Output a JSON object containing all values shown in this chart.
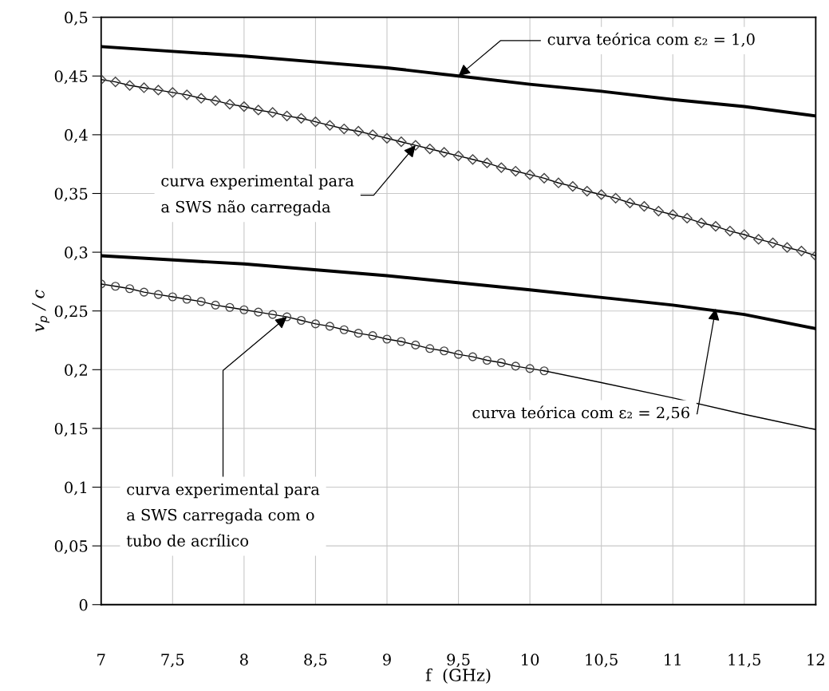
{
  "chart_data": {
    "type": "line",
    "xlabel": "f  (GHz)",
    "ylabel": "v$_{p}$ / c",
    "xlim": [
      7,
      12
    ],
    "xticks": [
      7,
      {
        "value": 7.5,
        "label": "7,5"
      },
      8,
      {
        "value": 8.5,
        "label": "8,5"
      },
      9,
      {
        "value": 9.5,
        "label": "9,5"
      },
      10,
      {
        "value": 10.5,
        "label": "10,5"
      },
      11,
      {
        "value": 11.5,
        "label": "11,5"
      },
      12
    ],
    "ylim": [
      0,
      0.5
    ],
    "yticks": [
      0,
      {
        "value": 0.05,
        "label": "0,05"
      },
      {
        "value": 0.1,
        "label": "0,1"
      },
      {
        "value": 0.15,
        "label": "0,15"
      },
      {
        "value": 0.2,
        "label": "0,2"
      },
      {
        "value": 0.25,
        "label": "0,25"
      },
      {
        "value": 0.3,
        "label": "0,3"
      },
      {
        "value": 0.35,
        "label": "0,35"
      },
      {
        "value": 0.4,
        "label": "0,4"
      },
      {
        "value": 0.45,
        "label": "0,45"
      },
      {
        "value": 0.5,
        "label": "0,5"
      }
    ],
    "grid": true,
    "legend": false,
    "series": [
      {
        "color": "#000000",
        "marker": "none",
        "line_style": "solid",
        "x": [
          7,
          7.5,
          8,
          8.5,
          9,
          9.5,
          10,
          10.5,
          11,
          11.5,
          12
        ],
        "values": [
          0.475,
          0.471,
          0.467,
          0.462,
          0.457,
          0.45,
          0.443,
          0.437,
          0.43,
          0.424,
          0.416
        ]
      },
      {
        "color": "#000000",
        "marker": "diamond",
        "line_style": "solid",
        "x": [
          7.0,
          7.1,
          7.2,
          7.3,
          7.4,
          7.5,
          7.6,
          7.7,
          7.8,
          7.9,
          8.0,
          8.1,
          8.2,
          8.3,
          8.4,
          8.5,
          8.6,
          8.7,
          8.8,
          8.9,
          9.0,
          9.1,
          9.2,
          9.3,
          9.4,
          9.5,
          9.6,
          9.7,
          9.8,
          9.9,
          10.0,
          10.1,
          10.2,
          10.3,
          10.4,
          10.5,
          10.6,
          10.7,
          10.8,
          10.9,
          11.0,
          11.1,
          11.2,
          11.3,
          11.4,
          11.5,
          11.6,
          11.7,
          11.8,
          11.9,
          12.0
        ],
        "values": [
          0.447,
          0.445,
          0.442,
          0.44,
          0.438,
          0.436,
          0.434,
          0.431,
          0.429,
          0.426,
          0.424,
          0.421,
          0.419,
          0.416,
          0.414,
          0.411,
          0.408,
          0.405,
          0.403,
          0.4,
          0.397,
          0.394,
          0.391,
          0.388,
          0.385,
          0.382,
          0.379,
          0.376,
          0.372,
          0.369,
          0.366,
          0.363,
          0.359,
          0.356,
          0.352,
          0.349,
          0.346,
          0.342,
          0.339,
          0.335,
          0.332,
          0.329,
          0.325,
          0.322,
          0.318,
          0.315,
          0.311,
          0.308,
          0.304,
          0.301,
          0.297
        ]
      },
      {
        "color": "#000000",
        "marker": "none",
        "line_style": "solid",
        "x": [
          7,
          8,
          9,
          10,
          11,
          11.5,
          12
        ],
        "values": [
          0.297,
          0.29,
          0.28,
          0.268,
          0.255,
          0.247,
          0.235
        ]
      },
      {
        "color": "#000000",
        "marker": "circle",
        "line_style": "solid",
        "x": [
          7.0,
          7.1,
          7.2,
          7.3,
          7.4,
          7.5,
          7.6,
          7.7,
          7.8,
          7.9,
          8.0,
          8.1,
          8.2,
          8.3,
          8.4,
          8.5,
          8.6,
          8.7,
          8.8,
          8.9,
          9.0,
          9.1,
          9.2,
          9.3,
          9.4,
          9.5,
          9.6,
          9.7,
          9.8,
          9.9,
          10.0,
          10.1
        ],
        "values": [
          0.273,
          0.271,
          0.269,
          0.266,
          0.264,
          0.262,
          0.26,
          0.258,
          0.255,
          0.253,
          0.251,
          0.249,
          0.247,
          0.245,
          0.242,
          0.239,
          0.237,
          0.234,
          0.231,
          0.229,
          0.226,
          0.224,
          0.221,
          0.218,
          0.216,
          0.213,
          0.211,
          0.208,
          0.206,
          0.203,
          0.201,
          0.199
        ]
      },
      {
        "color": "#000000",
        "marker": "none",
        "line_style": "solid",
        "x": [
          10.1,
          10.5,
          11,
          11.5,
          12
        ],
        "values": [
          0.199,
          0.189,
          0.176,
          0.162,
          0.149
        ]
      }
    ],
    "annotations": [
      {
        "text": "curva teórica com ε₂ = 1,0",
        "x": 9.5,
        "y": 0.45
      },
      {
        "text": "curva experimental para\na SWS não carregada",
        "x": 9.2,
        "y": 0.391
      },
      {
        "text": "curva experimental para\na SWS carregada com o\ntubo de acrílico",
        "x": 8.3,
        "y": 0.245
      },
      {
        "text": "curva teórica com ε₂ = 2,56",
        "x": 11.3,
        "y": 0.252
      }
    ]
  }
}
